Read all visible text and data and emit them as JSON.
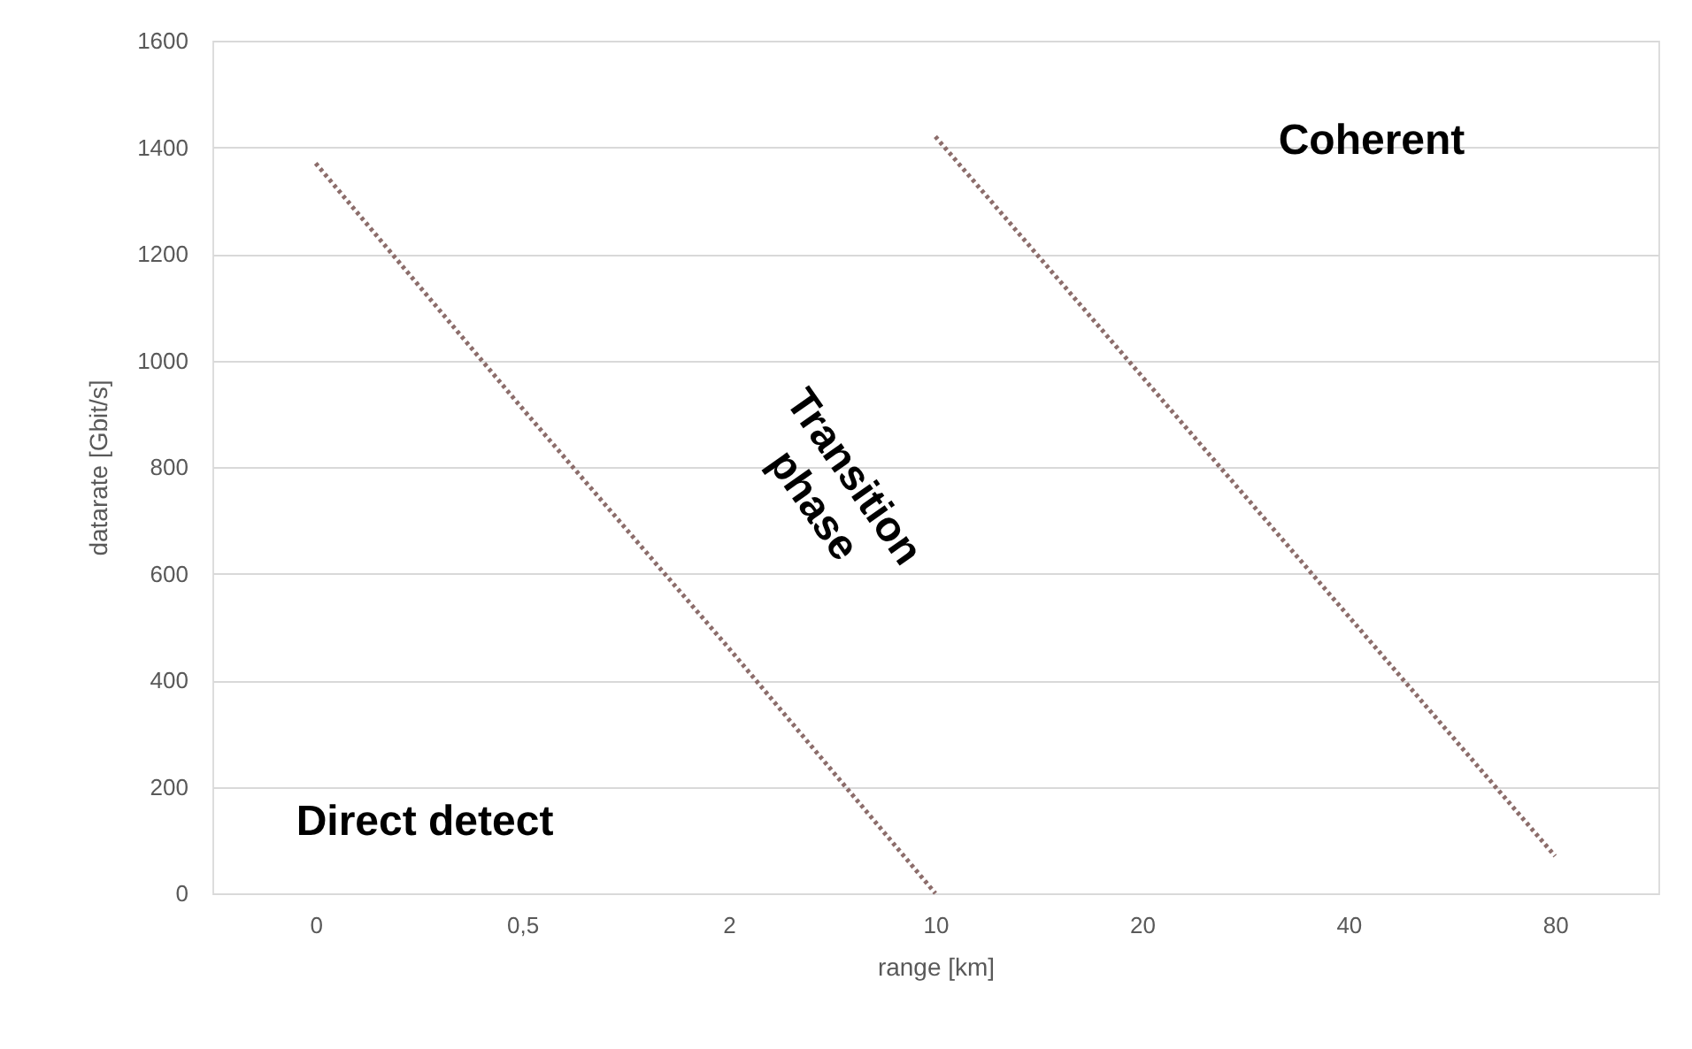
{
  "chart_data": {
    "type": "line",
    "xlabel": "range [km]",
    "ylabel": "datarate [Gbit/s]",
    "categories": [
      "0",
      "0,5",
      "2",
      "10",
      "20",
      "40",
      "80"
    ],
    "ylim": [
      0,
      1600
    ],
    "yticks": [
      0,
      200,
      400,
      600,
      800,
      1000,
      1200,
      1400,
      1600
    ],
    "series": [
      {
        "color": "#8c6d6b",
        "values": [
          1370,
          910,
          460,
          0,
          null,
          null,
          null
        ]
      },
      {
        "color": "#8c6d6b",
        "values": [
          null,
          null,
          null,
          1420,
          970,
          520,
          70
        ]
      }
    ],
    "line_style": "dotted",
    "marker": "none",
    "grid": "y",
    "annotations": [
      "Coherent",
      "Transition phase",
      "Direct detect"
    ]
  }
}
